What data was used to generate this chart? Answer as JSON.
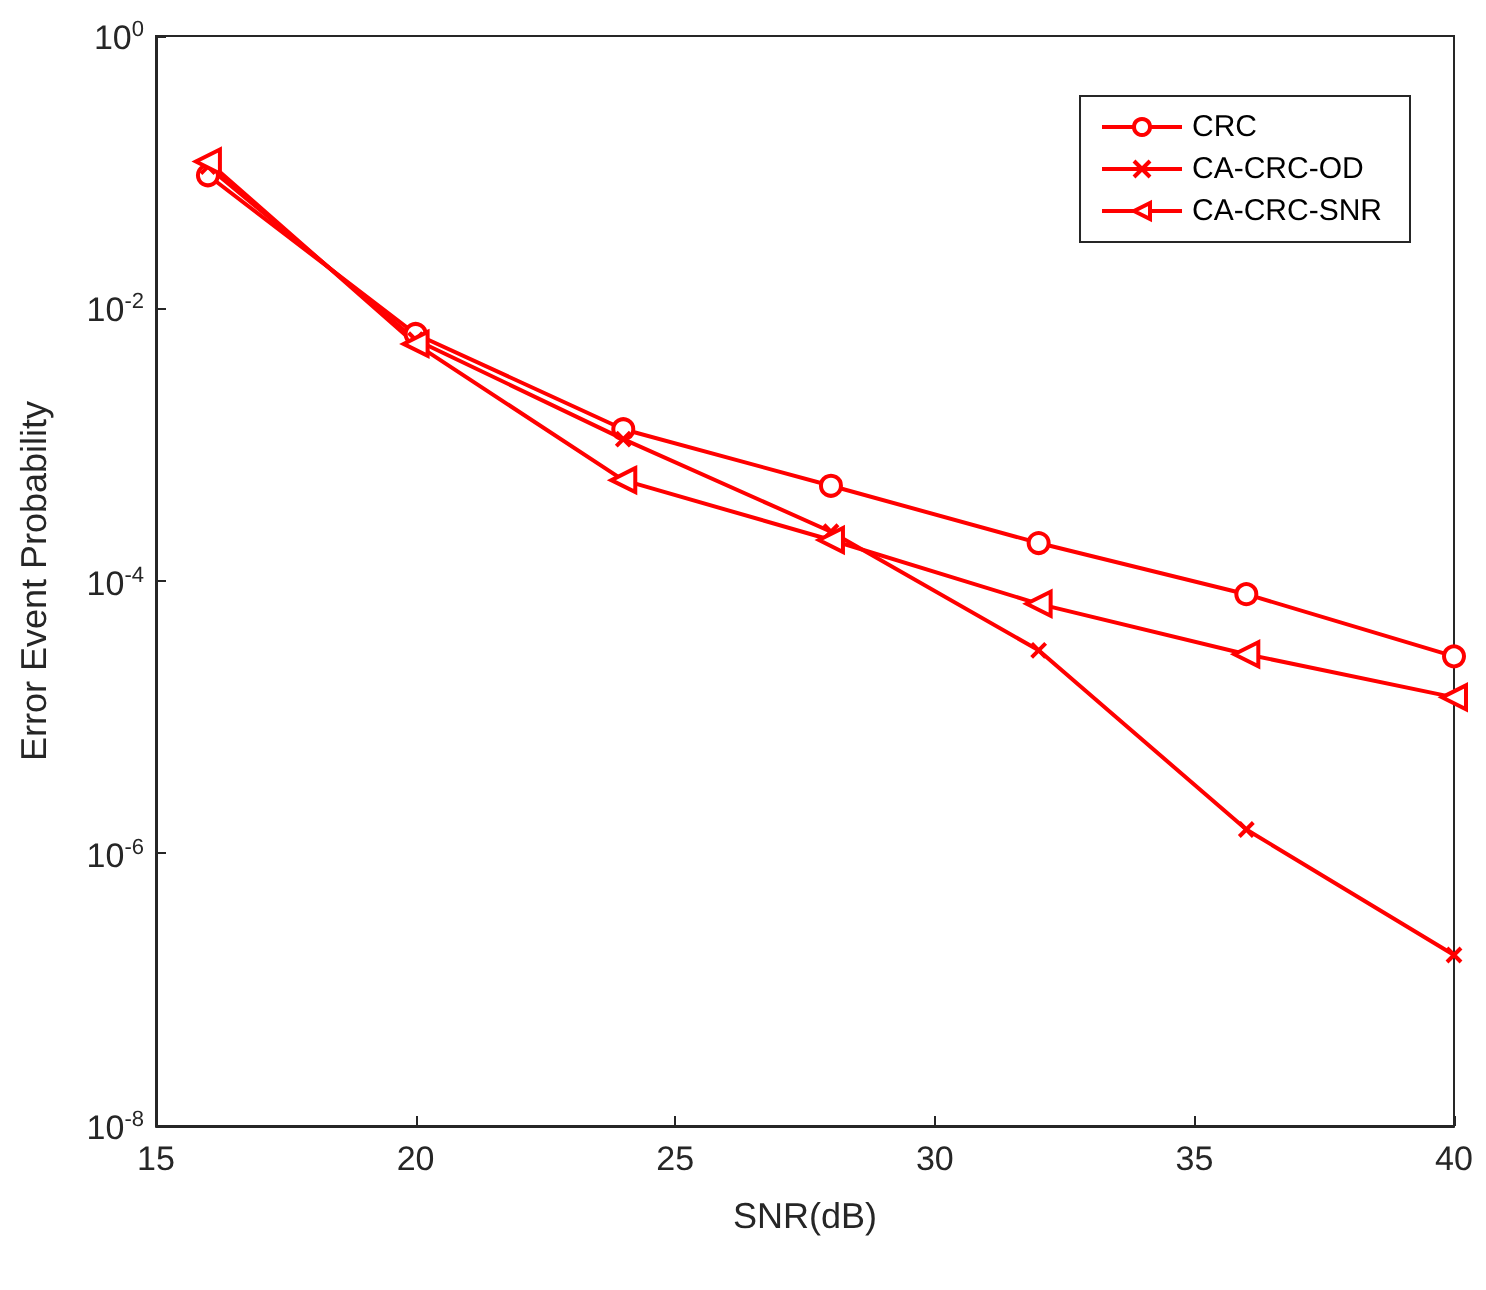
{
  "chart_data": {
    "type": "line",
    "xlabel": "SNR(dB)",
    "ylabel": "Error Event Probability",
    "x": [
      16,
      20,
      24,
      28,
      32,
      36,
      40
    ],
    "series": [
      {
        "name": "CRC",
        "color": "#ff0000",
        "marker": "circle",
        "values": [
          0.095,
          0.0065,
          0.0013,
          0.0005,
          0.00019,
          8e-05,
          2.8e-05
        ]
      },
      {
        "name": "CA-CRC-OD",
        "color": "#ff0000",
        "marker": "cross",
        "values": [
          0.11,
          0.0059,
          0.0011,
          0.00023,
          3.1e-05,
          1.5e-06,
          1.8e-07
        ]
      },
      {
        "name": "CA-CRC-SNR",
        "color": "#ff0000",
        "marker": "triangle",
        "values": [
          0.12,
          0.0055,
          0.00055,
          0.0002,
          6.8e-05,
          2.9e-05,
          1.4e-05
        ]
      }
    ],
    "xlim": [
      15,
      40
    ],
    "xticks": [
      15,
      20,
      25,
      30,
      35,
      40
    ],
    "ylim": [
      1e-08,
      1
    ],
    "yticks": [
      {
        "value": 1e-08,
        "label": "10$^{-8}$"
      },
      {
        "value": 1e-06,
        "label": "10$^{-6}$"
      },
      {
        "value": 0.0001,
        "label": "10$^{-4}$"
      },
      {
        "value": 0.01,
        "label": "10$^{-2}$"
      },
      {
        "value": 1,
        "label": "10$^{0}$"
      }
    ],
    "log": "y",
    "grid": false,
    "legend": "top right",
    "line_style": "solid"
  }
}
